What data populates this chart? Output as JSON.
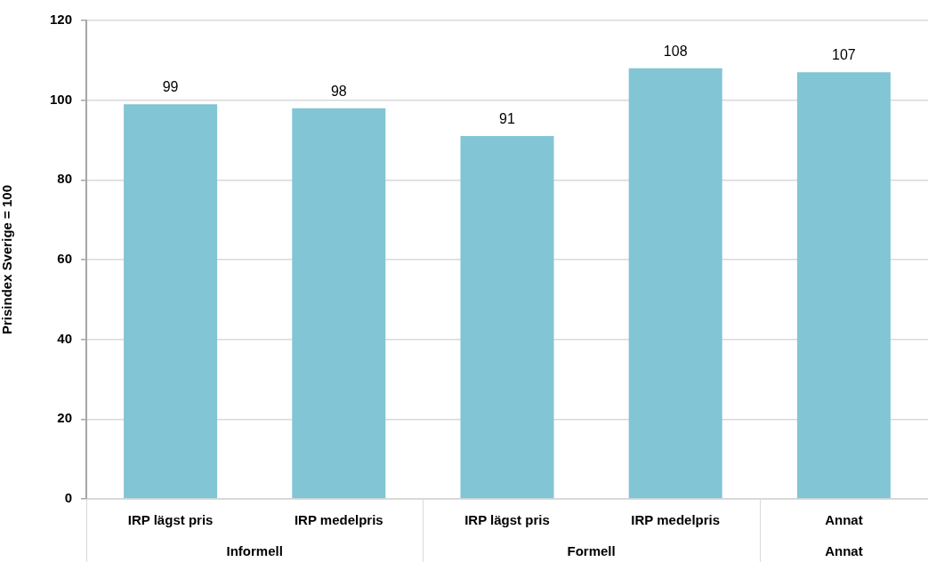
{
  "chart_data": {
    "type": "bar",
    "ylabel": "Prisindex Sverige = 100",
    "categories": [
      "IRP lägst pris",
      "IRP medelpris",
      "IRP lägst pris",
      "IRP medelpris",
      "Annat"
    ],
    "values": [
      99,
      98,
      91,
      108,
      107
    ],
    "color": "#82c5d4",
    "data_labels": true,
    "ylim": [
      0,
      120
    ],
    "yticks": [
      0,
      20,
      40,
      60,
      80,
      100,
      120
    ],
    "grid": "y",
    "annotations": [
      "Informell",
      "Formell",
      "Annat"
    ]
  }
}
